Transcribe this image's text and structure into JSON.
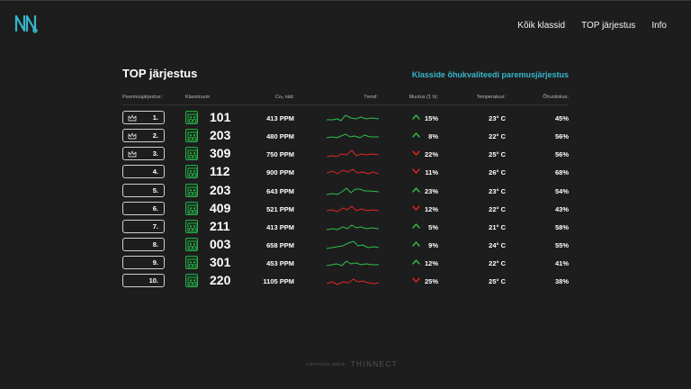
{
  "nav": {
    "all_classes": "Kõik klassid",
    "top_ranking": "TOP järjestus",
    "info": "Info"
  },
  "page": {
    "title": "TOP järjestus",
    "subtitle": "Klasside õhukvaliteedi paremusjärjestus"
  },
  "columns": {
    "rank": "Paremusjärjestus:",
    "classroom": "Klassiruum",
    "co2": "Co₂ näit:",
    "trend": "Trend:",
    "change": "Muutus (1 h):",
    "temperature": "Temperatuur:",
    "humidity": "Õhuniiskus:"
  },
  "colors": {
    "accent": "#36b6cc",
    "up": "#2fbf4c",
    "down": "#e02525"
  },
  "rows": [
    {
      "rank": "1.",
      "crown": true,
      "classroom": "101",
      "co2": "413 PPM",
      "direction": "up",
      "change": "15%",
      "temp": "23° C",
      "humidity": "45%"
    },
    {
      "rank": "2.",
      "crown": true,
      "classroom": "203",
      "co2": "480 PPM",
      "direction": "up",
      "change": "8%",
      "temp": "22° C",
      "humidity": "56%"
    },
    {
      "rank": "3.",
      "crown": true,
      "classroom": "309",
      "co2": "750 PPM",
      "direction": "down",
      "change": "22%",
      "temp": "25° C",
      "humidity": "56%"
    },
    {
      "rank": "4.",
      "crown": false,
      "classroom": "112",
      "co2": "900 PPM",
      "direction": "down",
      "change": "11%",
      "temp": "26° C",
      "humidity": "68%"
    },
    {
      "rank": "5.",
      "crown": false,
      "classroom": "203",
      "co2": "643 PPM",
      "direction": "up",
      "change": "23%",
      "temp": "23° C",
      "humidity": "54%"
    },
    {
      "rank": "6.",
      "crown": false,
      "classroom": "409",
      "co2": "521 PPM",
      "direction": "down",
      "change": "12%",
      "temp": "22° C",
      "humidity": "43%"
    },
    {
      "rank": "7.",
      "crown": false,
      "classroom": "211",
      "co2": "413 PPM",
      "direction": "up",
      "change": "5%",
      "temp": "21° C",
      "humidity": "58%"
    },
    {
      "rank": "8.",
      "crown": false,
      "classroom": "003",
      "co2": "658 PPM",
      "direction": "up",
      "change": "9%",
      "temp": "24° C",
      "humidity": "55%"
    },
    {
      "rank": "9.",
      "crown": false,
      "classroom": "301",
      "co2": "453 PPM",
      "direction": "up",
      "change": "12%",
      "temp": "22° C",
      "humidity": "41%"
    },
    {
      "rank": "10.",
      "crown": false,
      "classroom": "220",
      "co2": "1105 PPM",
      "direction": "down",
      "change": "25%",
      "temp": "25° C",
      "humidity": "38%"
    }
  ],
  "footer": {
    "text": "Lahenduse pakub",
    "brand": "THINNECT"
  }
}
